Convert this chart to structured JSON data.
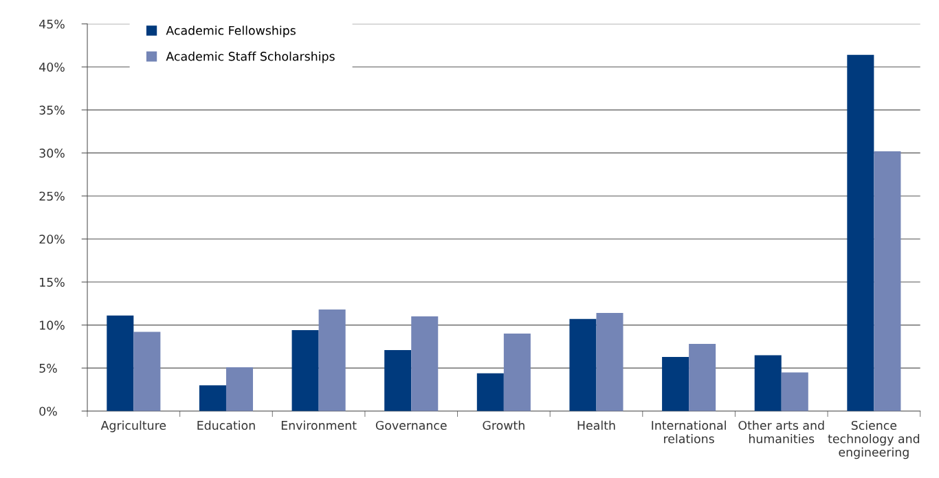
{
  "chart_data": {
    "type": "bar",
    "categories": [
      "Agriculture",
      "Education",
      "Environment",
      "Governance",
      "Growth",
      "Health",
      "International\nrelations",
      "Other arts and\nhumanities",
      "Science\ntechnology and\nengineering"
    ],
    "series": [
      {
        "name": "Academic Fellowships",
        "color": "#003a7d",
        "values": [
          11.1,
          3.0,
          9.4,
          7.1,
          4.4,
          10.7,
          6.3,
          6.5,
          41.4
        ]
      },
      {
        "name": "Academic Staff Scholarships",
        "color": "#7485b6",
        "values": [
          9.2,
          5.1,
          11.8,
          11.0,
          9.0,
          11.4,
          7.8,
          4.5,
          30.2
        ]
      }
    ],
    "ylim": [
      0,
      45
    ],
    "yticks": [
      {
        "value": 0,
        "label": "0%"
      },
      {
        "value": 5,
        "label": "5%"
      },
      {
        "value": 10,
        "label": "10%"
      },
      {
        "value": 15,
        "label": "15%"
      },
      {
        "value": 20,
        "label": "20%"
      },
      {
        "value": 25,
        "label": "25%"
      },
      {
        "value": 30,
        "label": "30%"
      },
      {
        "value": 35,
        "label": "35%"
      },
      {
        "value": 40,
        "label": "40%"
      },
      {
        "value": 45,
        "label": "45%"
      }
    ],
    "grid": "y",
    "legend": "top left"
  }
}
